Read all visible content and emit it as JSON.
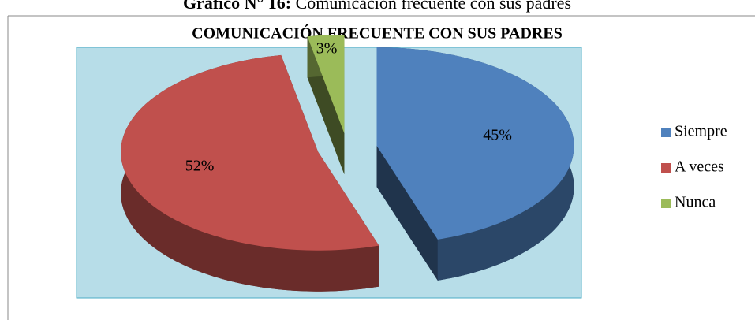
{
  "caption_label": "Gráfico N° 16:",
  "caption_text": "Comunicación frecuente con sus padres",
  "chart_data": {
    "type": "pie",
    "title": "COMUNICACIÓN FRECUENTE CON SUS PADRES",
    "categories": [
      "Siempre",
      "A veces",
      "Nunca"
    ],
    "values": [
      45,
      52,
      3
    ],
    "value_labels": [
      "45%",
      "52%",
      "3%"
    ],
    "colors": [
      "#4f81bd",
      "#c0504d",
      "#9bbb59"
    ],
    "legend": "right"
  }
}
